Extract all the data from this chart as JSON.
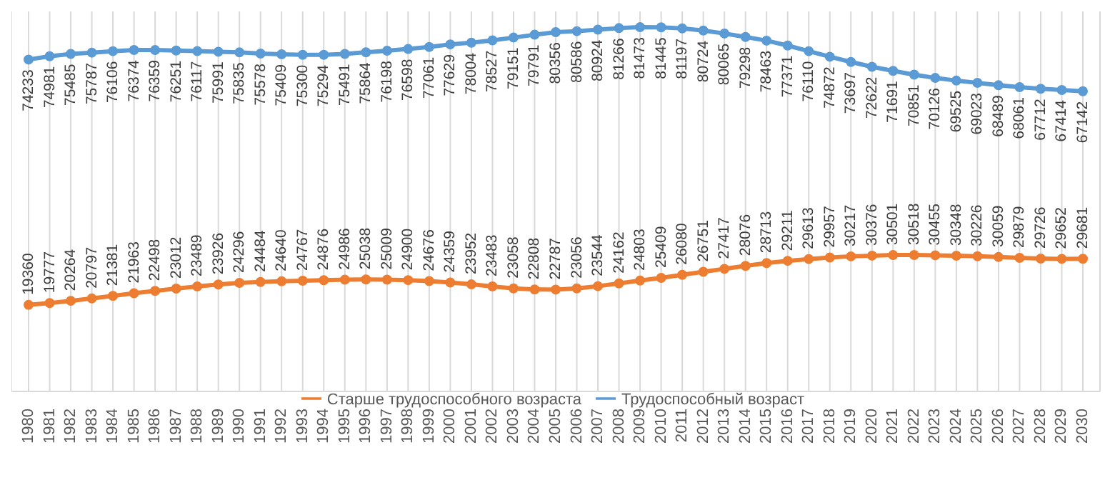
{
  "chart_data": {
    "type": "line",
    "categories": [
      "1980",
      "1981",
      "1982",
      "1983",
      "1984",
      "1985",
      "1986",
      "1987",
      "1988",
      "1989",
      "1990",
      "1991",
      "1992",
      "1993",
      "1994",
      "1995",
      "1996",
      "1997",
      "1998",
      "1999",
      "2000",
      "2001",
      "2002",
      "2003",
      "2004",
      "2005",
      "2006",
      "2007",
      "2008",
      "2009",
      "2010",
      "2011",
      "2012",
      "2013",
      "2014",
      "2015",
      "2016",
      "2017",
      "2018",
      "2019",
      "2020",
      "2021",
      "2022",
      "2023",
      "2024",
      "2025",
      "2026",
      "2027",
      "2028",
      "2029",
      "2030"
    ],
    "series": [
      {
        "name": "Трудоспособный возраст",
        "color": "#5b9bd5",
        "values": [
          74233,
          74981,
          75485,
          75787,
          76106,
          76374,
          76359,
          76251,
          76117,
          75991,
          75835,
          75578,
          75409,
          75300,
          75294,
          75491,
          75864,
          76198,
          76598,
          77061,
          77629,
          78004,
          78527,
          79151,
          79791,
          80356,
          80586,
          80924,
          81266,
          81473,
          81445,
          81197,
          80724,
          80065,
          79298,
          78463,
          77371,
          76110,
          74872,
          73697,
          72622,
          71691,
          70851,
          70126,
          69525,
          69023,
          68489,
          68061,
          67712,
          67414,
          67142
        ]
      },
      {
        "name": "Старше трудоспособного возраста",
        "color": "#ed7d31",
        "values": [
          19360,
          19777,
          20264,
          20797,
          21381,
          21963,
          22498,
          23012,
          23489,
          23926,
          24296,
          24484,
          24640,
          24767,
          24876,
          24986,
          25038,
          25009,
          24900,
          24676,
          24359,
          23952,
          23483,
          23058,
          22808,
          22787,
          23056,
          23544,
          24162,
          24803,
          25409,
          26080,
          26751,
          27417,
          28076,
          28713,
          29211,
          29613,
          29957,
          30217,
          30376,
          30501,
          30518,
          30455,
          30348,
          30226,
          30059,
          29879,
          29726,
          29652,
          29681
        ]
      }
    ],
    "ylim": [
      0,
      85000
    ],
    "tick_labels": "x",
    "grid": "x",
    "legend": "bottom",
    "marker": "circle",
    "line_style": "solid",
    "data_labels": true
  }
}
